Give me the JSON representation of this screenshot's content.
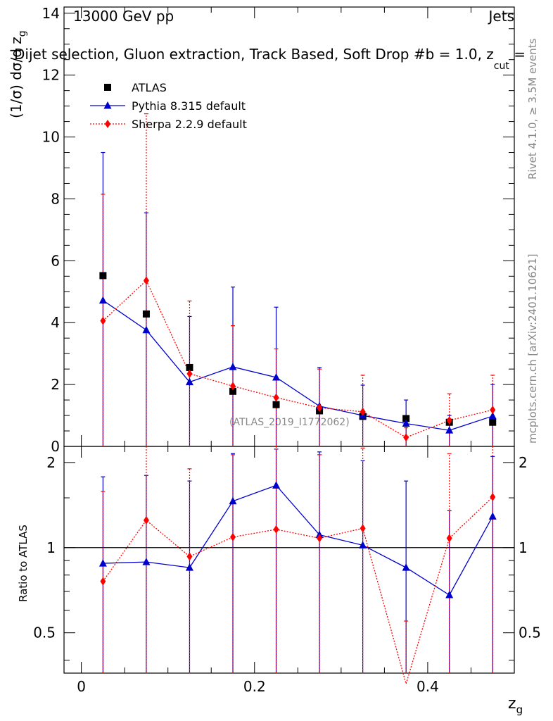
{
  "header": {
    "energy_label": "13000 GeV pp",
    "category": "Jets",
    "subtitle": "Dijet selection, Gluon extraction, Track Based, Soft Drop #b = 1.0, z",
    "subtitle_sub": "cut",
    "subtitle_tail": " ="
  },
  "side_labels": {
    "rivet": "Rivet 4.1.0, ≥ 3.5M events",
    "mcplots": "mcplots.cern.ch [arXiv:2401.10621]"
  },
  "watermark": "(ATLAS_2019_I1772062)",
  "colors": {
    "atlas": "#000000",
    "pythia": "#0000cc",
    "sherpa": "#ff0000"
  },
  "chart_data": [
    {
      "type": "scatter",
      "panel": "main",
      "ylabel": "(1/σ) dσ/d z",
      "ylabel_sub": "g",
      "xlim": [
        -0.02,
        0.5
      ],
      "ylim": [
        0,
        14.2
      ],
      "y_ticks": [
        0,
        2,
        4,
        6,
        8,
        10,
        12,
        14
      ],
      "y_tick_labels": [
        "0",
        "2",
        "4",
        "6",
        "8",
        "10",
        "12",
        "14"
      ],
      "x": [
        0.025,
        0.075,
        0.125,
        0.175,
        0.225,
        0.275,
        0.325,
        0.375,
        0.425,
        0.475
      ],
      "series": [
        {
          "name": "ATLAS",
          "marker": "square",
          "values": [
            5.52,
            4.28,
            2.55,
            1.78,
            1.35,
            1.15,
            0.97,
            0.9,
            0.78,
            0.78
          ],
          "err_up": [
            null,
            null,
            null,
            null,
            null,
            null,
            null,
            null,
            null,
            null
          ]
        },
        {
          "name": "Pythia 8.315 default",
          "marker": "triangle",
          "values": [
            4.72,
            3.76,
            2.08,
            2.57,
            2.23,
            1.3,
            1.0,
            0.74,
            0.52,
            0.98
          ],
          "err_up": [
            9.5,
            7.55,
            4.2,
            5.15,
            4.5,
            2.55,
            1.98,
            1.5,
            1.0,
            2.0
          ]
        },
        {
          "name": "Sherpa 2.2.9 default",
          "marker": "diamond",
          "values": [
            4.06,
            5.36,
            2.35,
            1.95,
            1.58,
            1.25,
            1.12,
            0.29,
            0.84,
            1.18
          ],
          "err_up": [
            8.15,
            10.75,
            4.7,
            3.9,
            3.15,
            2.5,
            2.3,
            0.6,
            1.7,
            2.3
          ]
        }
      ],
      "legend": [
        {
          "label": "ATLAS",
          "marker": "square"
        },
        {
          "label": "Pythia 8.315 default",
          "marker": "triangle"
        },
        {
          "label": "Sherpa 2.2.9 default",
          "marker": "diamond"
        }
      ]
    },
    {
      "type": "line",
      "panel": "ratio",
      "ylabel": "Ratio to ATLAS",
      "xlabel": "z",
      "xlabel_sub": "g",
      "xlim": [
        -0.02,
        0.5
      ],
      "ylim": [
        0.36,
        2.28
      ],
      "x_ticks": [
        0,
        0.2,
        0.4
      ],
      "x_tick_labels": [
        "0",
        "0.2",
        "0.4"
      ],
      "y_ticks": [
        0.5,
        1,
        2
      ],
      "y_tick_labels": [
        "0.5",
        "1",
        "2"
      ],
      "reference": 1.0,
      "x": [
        0.025,
        0.075,
        0.125,
        0.175,
        0.225,
        0.275,
        0.325,
        0.375,
        0.425,
        0.475
      ],
      "series": [
        {
          "name": "Pythia 8.315 default",
          "marker": "triangle",
          "values": [
            0.88,
            0.89,
            0.85,
            1.46,
            1.66,
            1.11,
            1.02,
            0.85,
            0.68,
            1.29
          ],
          "err_up": [
            1.78,
            1.8,
            1.72,
            2.15,
            2.23,
            2.18,
            2.03,
            1.72,
            1.35,
            2.1
          ]
        },
        {
          "name": "Sherpa 2.2.9 default",
          "marker": "diamond",
          "values": [
            0.76,
            1.25,
            0.93,
            1.09,
            1.16,
            1.08,
            1.17,
            0.33,
            1.08,
            1.51
          ],
          "err_up": [
            1.58,
            2.28,
            1.9,
            2.13,
            2.28,
            2.13,
            2.25,
            0.55,
            2.15,
            2.28
          ]
        }
      ]
    }
  ]
}
